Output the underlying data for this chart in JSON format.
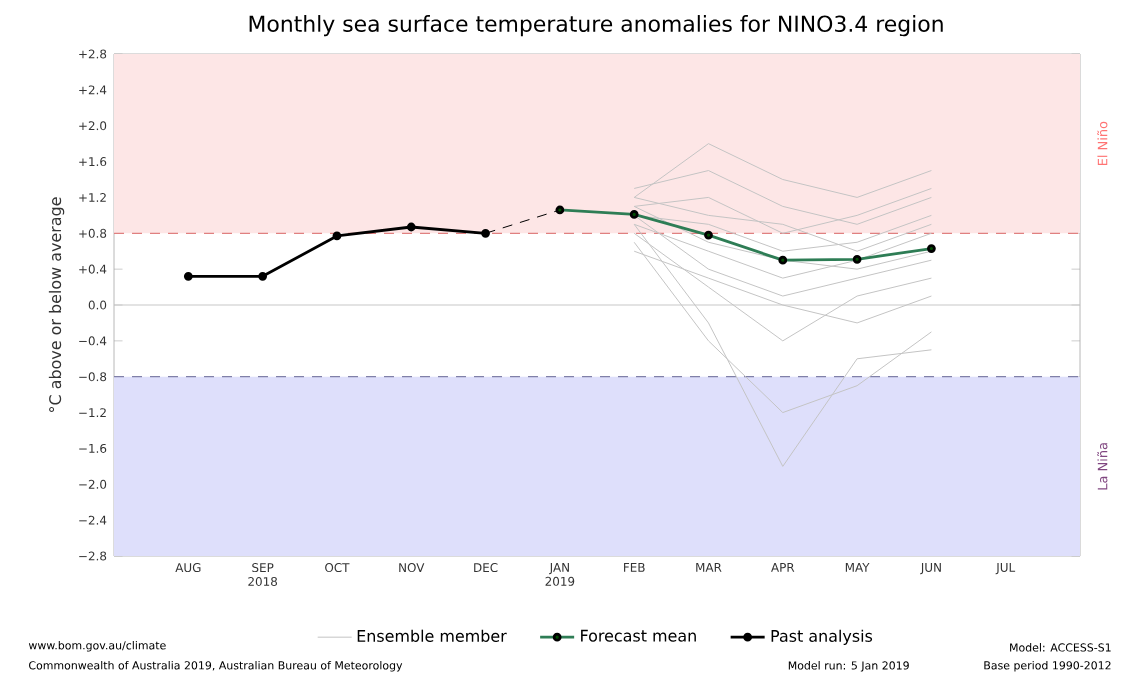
{
  "chart_data": {
    "type": "line",
    "title": "Monthly sea surface temperature anomalies for NINO3.4 region",
    "ylabel": "°C above or below average",
    "categories": [
      "AUG",
      "SEP 2018",
      "OCT",
      "NOV",
      "DEC",
      "JAN 2019",
      "FEB",
      "MAR",
      "APR",
      "MAY",
      "JUN",
      "JUL"
    ],
    "ylim": [
      -2.8,
      2.8
    ],
    "yticks": [
      {
        "value": -2.8,
        "label": "−2.8"
      },
      {
        "value": -2.4,
        "label": "−2.4"
      },
      {
        "value": -2.0,
        "label": "−2.0"
      },
      {
        "value": -1.6,
        "label": "−1.6"
      },
      {
        "value": -1.2,
        "label": "−1.2"
      },
      {
        "value": -0.8,
        "label": "−0.8"
      },
      {
        "value": -0.4,
        "label": "−0.4"
      },
      {
        "value": 0,
        "label": "0.0"
      },
      {
        "value": 0.4,
        "label": "+0.4"
      },
      {
        "value": 0.8,
        "label": "+0.8"
      },
      {
        "value": 1.2,
        "label": "+1.2"
      },
      {
        "value": 1.6,
        "label": "+1.6"
      },
      {
        "value": 2.0,
        "label": "+2.0"
      },
      {
        "value": 2.4,
        "label": "+2.4"
      },
      {
        "value": 2.8,
        "label": "+2.8"
      }
    ],
    "grid": false,
    "legend": "bottom",
    "bands": [
      {
        "axis": "y",
        "from": 0.8,
        "to": 2.8,
        "label": "El Niño",
        "color": "#fde6e6"
      },
      {
        "axis": "y",
        "from": -2.8,
        "to": -0.8,
        "label": "La Niña",
        "color": "#dedffb"
      }
    ],
    "ref_lines": [
      {
        "axis": "y",
        "value": 0.8,
        "color": "#e08080",
        "line_style": "dashed"
      },
      {
        "axis": "y",
        "value": -0.8,
        "color": "#8080a8",
        "line_style": "dashed"
      },
      {
        "axis": "y",
        "value": 0,
        "color": "#c8c8c8",
        "line_style": "solid"
      }
    ],
    "series": [
      {
        "name": "Ensemble member",
        "color": "#c4c4c4",
        "marker": "none",
        "values": [
          null,
          null,
          null,
          null,
          null,
          null,
          1.3,
          1.5,
          1.1,
          0.9,
          1.2,
          null
        ]
      },
      {
        "color": "#c4c4c4",
        "marker": "none",
        "values": [
          null,
          null,
          null,
          null,
          null,
          null,
          1.2,
          1.8,
          1.4,
          1.2,
          1.5,
          null
        ]
      },
      {
        "color": "#c4c4c4",
        "marker": "none",
        "values": [
          null,
          null,
          null,
          null,
          null,
          null,
          1.1,
          1.2,
          0.8,
          1.0,
          1.3,
          null
        ]
      },
      {
        "color": "#c4c4c4",
        "marker": "none",
        "values": [
          null,
          null,
          null,
          null,
          null,
          null,
          1.0,
          0.9,
          0.6,
          0.7,
          1.0,
          null
        ]
      },
      {
        "color": "#c4c4c4",
        "marker": "none",
        "values": [
          null,
          null,
          null,
          null,
          null,
          null,
          0.9,
          0.6,
          0.3,
          0.5,
          0.8,
          null
        ]
      },
      {
        "color": "#c4c4c4",
        "marker": "none",
        "values": [
          null,
          null,
          null,
          null,
          null,
          null,
          1.0,
          0.4,
          0.1,
          0.3,
          0.5,
          null
        ]
      },
      {
        "color": "#c4c4c4",
        "marker": "none",
        "values": [
          null,
          null,
          null,
          null,
          null,
          null,
          0.8,
          0.2,
          -0.4,
          0.1,
          0.3,
          null
        ]
      },
      {
        "color": "#c4c4c4",
        "marker": "none",
        "values": [
          null,
          null,
          null,
          null,
          null,
          null,
          0.9,
          -0.2,
          -1.8,
          -0.6,
          -0.5,
          null
        ]
      },
      {
        "color": "#c4c4c4",
        "marker": "none",
        "values": [
          null,
          null,
          null,
          null,
          null,
          null,
          0.7,
          -0.4,
          -1.2,
          -0.9,
          -0.3,
          null
        ]
      },
      {
        "color": "#c4c4c4",
        "marker": "none",
        "values": [
          null,
          null,
          null,
          null,
          null,
          null,
          1.1,
          0.7,
          0.5,
          0.4,
          0.6,
          null
        ]
      },
      {
        "color": "#c4c4c4",
        "marker": "none",
        "values": [
          null,
          null,
          null,
          null,
          null,
          null,
          1.2,
          1.0,
          0.9,
          0.6,
          0.9,
          null
        ]
      },
      {
        "color": "#c4c4c4",
        "marker": "none",
        "values": [
          null,
          null,
          null,
          null,
          null,
          null,
          0.6,
          0.3,
          0.0,
          -0.2,
          0.1,
          null
        ]
      },
      {
        "color": "#000000",
        "marker": "none",
        "line_style": "dashed",
        "values": [
          null,
          null,
          null,
          null,
          0.8,
          1.06,
          null,
          null,
          null,
          null,
          null,
          null
        ]
      },
      {
        "name": "Forecast mean",
        "color": "#2e7d55",
        "marker": "circle",
        "values": [
          null,
          null,
          null,
          null,
          null,
          1.06,
          1.01,
          0.78,
          0.5,
          0.51,
          0.63,
          null
        ]
      },
      {
        "name": "Past analysis",
        "color": "#000000",
        "marker": "circle",
        "values": [
          0.32,
          0.32,
          0.77,
          0.87,
          0.8,
          null,
          null,
          null,
          null,
          null,
          null,
          null
        ]
      }
    ],
    "annotations": [
      "www.bom.gov.au/climate",
      "Commonwealth of Australia 2019, Australian Bureau of Meteorology",
      "Model run: 5 Jan 2019",
      "Model: ACCESS-S1",
      "Base period 1990-2012"
    ]
  }
}
